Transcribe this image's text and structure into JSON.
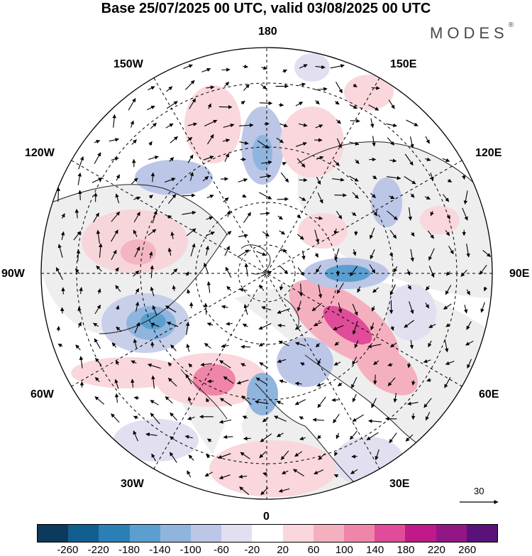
{
  "title": "Base 25/07/2025 00 UTC, valid 03/08/2025 00 UTC",
  "brand": "MODES",
  "brand_mark": "®",
  "map": {
    "projection": "north polar stereographic",
    "longitude_labels": {
      "top": "180",
      "bottom": "0",
      "left": "90W",
      "right": "90E",
      "upper_left_1": "150W",
      "upper_left_2": "120W",
      "upper_right_1": "150E",
      "upper_right_2": "120E",
      "lower_left_1": "60W",
      "lower_left_2": "30W",
      "lower_right_1": "60E",
      "lower_right_2": "30E"
    },
    "vector_scale_label": "30"
  },
  "colorbar": {
    "tick_labels": [
      "-260",
      "-220",
      "-180",
      "-140",
      "-100",
      "-60",
      "-20",
      "20",
      "60",
      "100",
      "140",
      "180",
      "220",
      "260"
    ],
    "colors": [
      "#0b3a5c",
      "#115f8f",
      "#2a7fb5",
      "#5a9fd0",
      "#8fb5de",
      "#bcc6e6",
      "#e1dff0",
      "#ffffff",
      "#f9d7dc",
      "#f5b0bf",
      "#ef85a8",
      "#e04c99",
      "#c0198a",
      "#921784",
      "#5a1179"
    ]
  }
}
